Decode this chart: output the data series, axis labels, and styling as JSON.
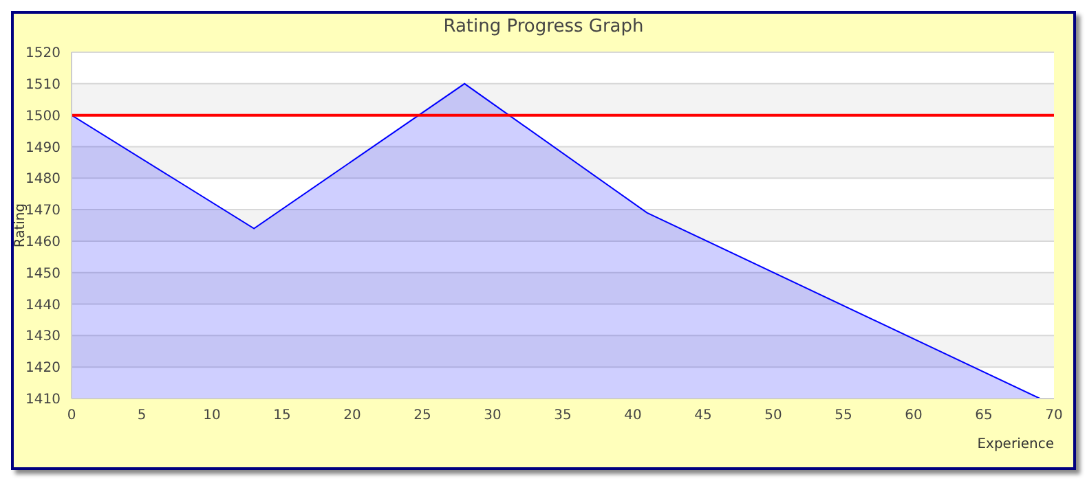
{
  "chart_data": {
    "type": "area",
    "title": "Rating Progress Graph",
    "xlabel": "Experience",
    "ylabel": "Rating",
    "x": [
      0,
      13,
      28,
      41,
      69
    ],
    "series": [
      {
        "color": "#0000ff",
        "values": [
          1500,
          1464,
          1510,
          1469,
          1410
        ]
      }
    ],
    "xlim": [
      0,
      70
    ],
    "xticks": [
      0,
      5,
      10,
      15,
      20,
      25,
      30,
      35,
      40,
      45,
      50,
      55,
      60,
      65,
      70
    ],
    "ylim": [
      1410,
      1520
    ],
    "yticks": [
      1410,
      1420,
      1430,
      1440,
      1450,
      1460,
      1470,
      1480,
      1490,
      1500,
      1510,
      1520
    ],
    "grid": "y",
    "ref_lines": [
      {
        "axis": "y",
        "value": 1500,
        "color": "#ff0000"
      }
    ]
  }
}
